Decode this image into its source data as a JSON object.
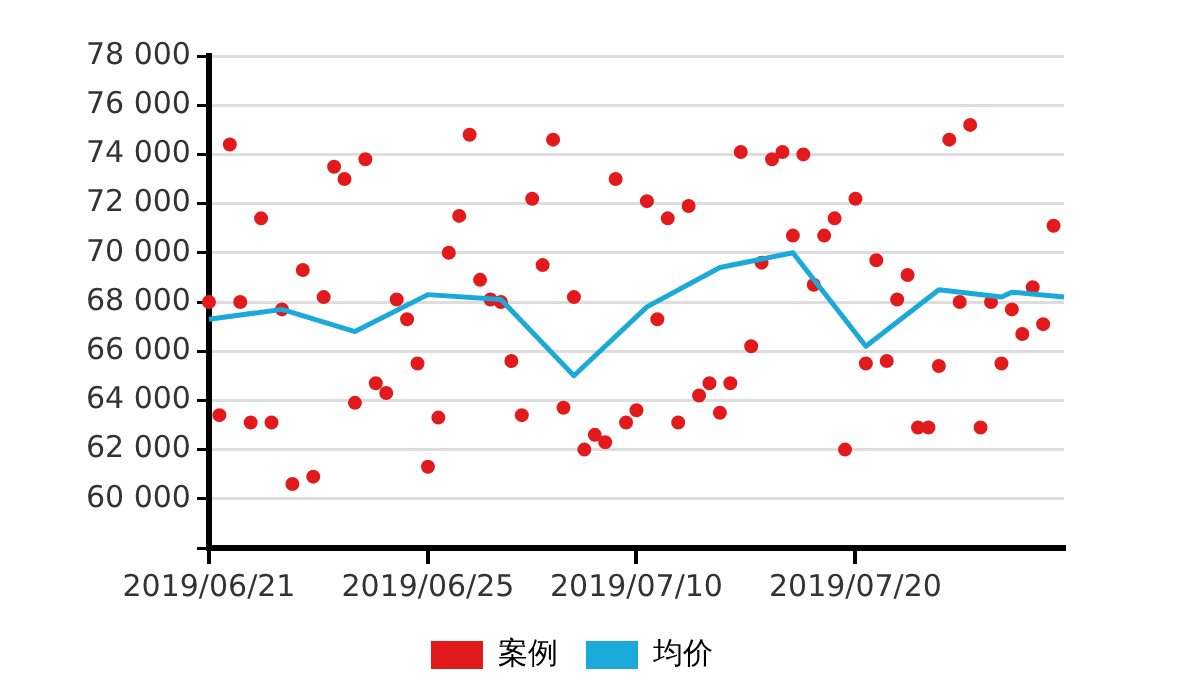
{
  "chart_data": {
    "type": "scatter",
    "categories": [
      "2019/06/21",
      null,
      null,
      null,
      null,
      null,
      null,
      null,
      null,
      null,
      null,
      null,
      null,
      null,
      null,
      null,
      null,
      null,
      null,
      null,
      null,
      "2019/06/25",
      null,
      null,
      null,
      null,
      null,
      null,
      null,
      null,
      null,
      null,
      null,
      null,
      null,
      null,
      null,
      null,
      null,
      null,
      null,
      "2019/07/10",
      null,
      null,
      null,
      null,
      null,
      null,
      null,
      null,
      null,
      null,
      null,
      null,
      null,
      null,
      null,
      null,
      null,
      null,
      null,
      null,
      "2019/07/20",
      null,
      null,
      null,
      null,
      null,
      null,
      null,
      null,
      null,
      null,
      null,
      null,
      null,
      null,
      null,
      null,
      null,
      null,
      null,
      null
    ],
    "ylim": [
      58000,
      78000
    ],
    "yticks": [
      {
        "value": 58000,
        "label": null
      },
      {
        "value": 60000,
        "label": "60 000"
      },
      {
        "value": 62000,
        "label": "62 000"
      },
      {
        "value": 64000,
        "label": "64 000"
      },
      {
        "value": 66000,
        "label": "66 000"
      },
      {
        "value": 68000,
        "label": "68 000"
      },
      {
        "value": 70000,
        "label": "70 000"
      },
      {
        "value": 72000,
        "label": "72 000"
      },
      {
        "value": 74000,
        "label": "74 000"
      },
      {
        "value": 76000,
        "label": "76 000"
      },
      {
        "value": 78000,
        "label": "78 000"
      }
    ],
    "grid": "y",
    "legend": "bottom",
    "series": [
      {
        "type": "scatter",
        "name": "案例",
        "color": "#e31a1c",
        "marker": "circle",
        "values": [
          68000,
          63400,
          74400,
          68000,
          63100,
          71400,
          63100,
          67700,
          60600,
          69300,
          60900,
          68200,
          73500,
          73000,
          63900,
          73800,
          64700,
          64300,
          68100,
          67300,
          65500,
          61300,
          63300,
          70000,
          71500,
          74800,
          68900,
          68100,
          68000,
          65600,
          63400,
          72200,
          69500,
          74600,
          63700,
          68200,
          62000,
          62600,
          62300,
          73000,
          63100,
          63600,
          72100,
          67300,
          71400,
          63100,
          71900,
          64200,
          64700,
          63500,
          64700,
          74100,
          66200,
          69600,
          73800,
          74100,
          70700,
          74000,
          68700,
          70700,
          71400,
          62000,
          72200,
          65500,
          69700,
          65600,
          68100,
          69100,
          62900,
          62900,
          65400,
          74600,
          68000,
          75200,
          62900,
          68000,
          65500,
          67700,
          66700,
          68600,
          67100,
          71100,
          null
        ]
      },
      {
        "type": "line",
        "name": "均价",
        "color": "#1ba9d9",
        "marker": "none",
        "values": [
          67300,
          null,
          null,
          null,
          null,
          null,
          null,
          67700,
          null,
          null,
          null,
          null,
          null,
          null,
          66800,
          null,
          null,
          null,
          null,
          null,
          null,
          68300,
          null,
          null,
          null,
          null,
          null,
          null,
          68100,
          null,
          null,
          null,
          null,
          null,
          null,
          65000,
          null,
          null,
          null,
          null,
          null,
          null,
          67800,
          null,
          null,
          null,
          null,
          null,
          null,
          69400,
          null,
          null,
          null,
          null,
          null,
          null,
          70000,
          null,
          null,
          null,
          null,
          null,
          null,
          66200,
          null,
          null,
          null,
          null,
          null,
          null,
          68500,
          null,
          null,
          null,
          null,
          null,
          68200,
          68400,
          null,
          null,
          null,
          null,
          68200
        ]
      }
    ]
  }
}
